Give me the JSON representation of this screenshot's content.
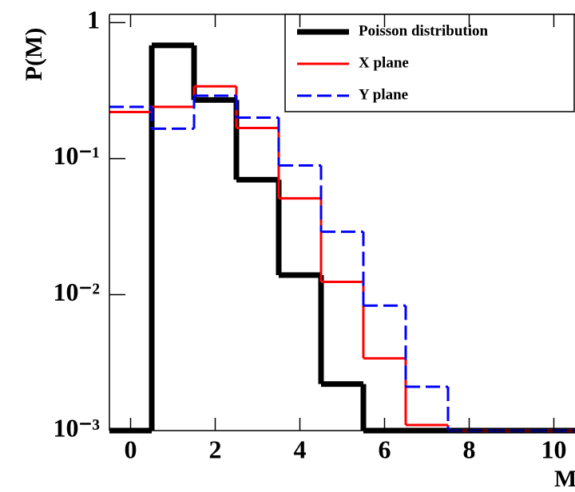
{
  "chart_data": {
    "type": "histogram",
    "xlabel": "M",
    "ylabel": "P(M)",
    "bins": [
      -0.5,
      0.5,
      1.5,
      2.5,
      3.5,
      4.5,
      5.5,
      6.5,
      7.5,
      8.5,
      9.5,
      10.5
    ],
    "series": [
      {
        "name": "Poisson distribution",
        "color": "#000000",
        "line_width": 7,
        "dashed": false,
        "values": [
          0.001,
          0.68,
          0.27,
          0.07,
          0.0139,
          0.0022,
          0.001,
          0.001,
          0.001,
          0.001,
          0.001
        ]
      },
      {
        "name": "X plane",
        "color": "#ff0000",
        "line_width": 3,
        "dashed": false,
        "values": [
          0.22,
          0.24,
          0.34,
          0.168,
          0.051,
          0.0124,
          0.0034,
          0.0011,
          0.001,
          0.001,
          0.001
        ]
      },
      {
        "name": "Y plane",
        "color": "#0000ff",
        "line_width": 3,
        "dashed": true,
        "values": [
          0.24,
          0.166,
          0.29,
          0.2,
          0.089,
          0.029,
          0.0083,
          0.0021,
          0.001,
          0.001,
          0.001
        ]
      }
    ],
    "xlim": [
      -0.5,
      10.5
    ],
    "xticks": [
      0,
      2,
      4,
      6,
      8,
      10
    ],
    "ylim": [
      0.001,
      1.15
    ],
    "log_y": true,
    "yticks": [
      {
        "value": 0.001,
        "label": "10⁻³"
      },
      {
        "value": 0.01,
        "label": "10⁻²"
      },
      {
        "value": 0.1,
        "label": "10⁻¹"
      },
      1
    ],
    "legend": "top-right"
  }
}
